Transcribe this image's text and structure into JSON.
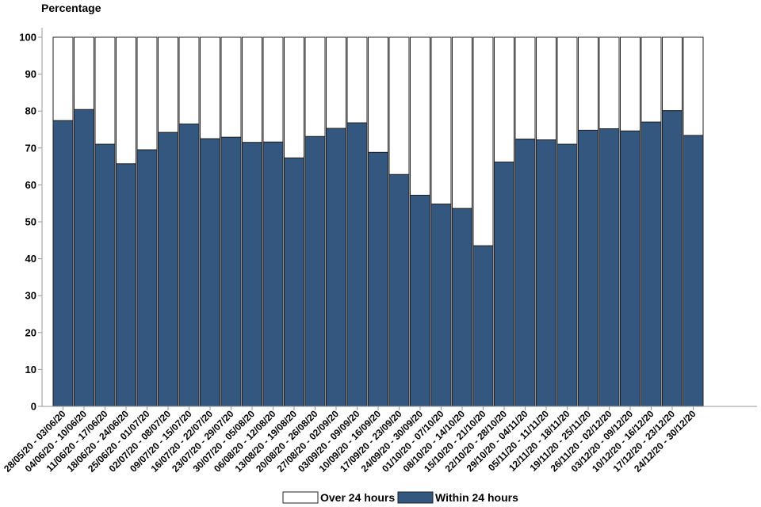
{
  "chart_data": {
    "type": "bar",
    "stacked": true,
    "ylabel": "Percentage",
    "ylim": [
      0,
      100
    ],
    "yticks": [
      0,
      10,
      20,
      30,
      40,
      50,
      60,
      70,
      80,
      90,
      100
    ],
    "grid": false,
    "legend_position": "bottom",
    "categories": [
      "28/05/20 - 03/06/20",
      "04/06/20 - 10/06/20",
      "11/06/20 - 17/06/20",
      "18/06/20 - 24/06/20",
      "25/06/20 - 01/07/20",
      "02/07/20 - 08/07/20",
      "09/07/20 - 15/07/20",
      "16/07/20 - 22/07/20",
      "23/07/20 - 29/07/20",
      "30/07/20 - 05/08/20",
      "06/08/20 - 12/08/20",
      "13/08/20 - 19/08/20",
      "20/08/20 - 26/08/20",
      "27/08/20 - 02/09/20",
      "03/09/20 - 09/09/20",
      "10/09/20 - 16/09/20",
      "17/09/20 - 23/09/20",
      "24/09/20 - 30/09/20",
      "01/10/20 - 07/10/20",
      "08/10/20 - 14/10/20",
      "15/10/20 - 21/10/20",
      "22/10/20 - 28/10/20",
      "29/10/20 - 04/11/20",
      "05/11/20 - 11/11/20",
      "12/11/20 - 18/11/20",
      "19/11/20 - 25/11/20",
      "26/11/20 - 02/12/20",
      "03/12/20 - 09/12/20",
      "10/12/20 - 16/12/20",
      "17/12/20 - 23/12/20",
      "24/12/20 - 30/12/20"
    ],
    "series": [
      {
        "name": "Within 24 hours",
        "color": "#34577f",
        "values": [
          77.4,
          80.4,
          71.0,
          65.7,
          69.5,
          74.2,
          76.5,
          72.5,
          72.9,
          71.5,
          71.6,
          67.3,
          73.1,
          75.3,
          76.8,
          68.8,
          62.8,
          57.2,
          54.8,
          53.6,
          43.5,
          66.2,
          72.4,
          72.2,
          71.0,
          74.8,
          75.2,
          74.6,
          77.0,
          80.1,
          73.4
        ]
      },
      {
        "name": "Over 24 hours",
        "color": "#ffffff",
        "values": [
          22.6,
          19.6,
          29.0,
          34.3,
          30.5,
          25.8,
          23.5,
          27.5,
          27.1,
          28.5,
          28.4,
          32.7,
          26.9,
          24.7,
          23.2,
          31.2,
          37.2,
          42.8,
          45.2,
          46.4,
          56.5,
          33.8,
          27.6,
          27.8,
          29.0,
          25.2,
          24.8,
          25.4,
          23.0,
          19.9,
          26.6
        ]
      }
    ],
    "legend_order": [
      "Over 24 hours",
      "Within 24 hours"
    ]
  }
}
